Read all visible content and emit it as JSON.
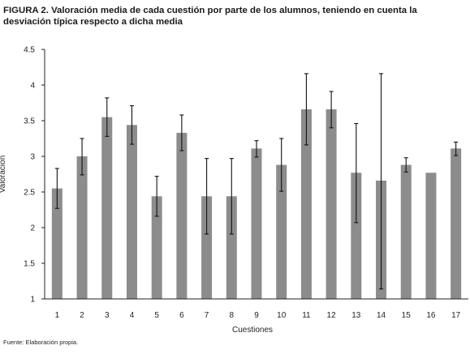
{
  "figure": {
    "label": "FIGURA 2.",
    "title": "Valoración media de cada cuestión por parte de los alumnos, teniendo en cuenta la desviación típica respecto a dicha media",
    "source": "Fuente: Elaboración propia."
  },
  "chart_data": {
    "type": "bar",
    "xlabel": "Cuestiones",
    "ylabel": "Valoracion",
    "ylim": [
      1,
      4.5
    ],
    "yticks": [
      "1",
      "1.5",
      "2",
      "2.5",
      "3",
      "3.5",
      "4",
      "4.5"
    ],
    "categories": [
      "1",
      "2",
      "3",
      "4",
      "5",
      "6",
      "7",
      "8",
      "9",
      "10",
      "11",
      "12",
      "13",
      "14",
      "15",
      "16",
      "17"
    ],
    "values": [
      2.55,
      3.0,
      3.55,
      3.44,
      2.44,
      3.33,
      2.44,
      2.44,
      3.11,
      2.88,
      3.66,
      3.66,
      2.77,
      2.66,
      2.88,
      2.77,
      3.11
    ],
    "error_low": [
      2.27,
      2.74,
      3.28,
      3.17,
      2.16,
      3.08,
      1.91,
      1.91,
      2.99,
      2.51,
      3.16,
      3.4,
      2.07,
      1.14,
      2.78,
      2.77,
      3.01
    ],
    "error_high": [
      2.83,
      3.25,
      3.82,
      3.71,
      2.72,
      3.58,
      2.97,
      2.97,
      3.22,
      3.25,
      4.16,
      3.91,
      3.46,
      4.16,
      2.98,
      2.77,
      3.2
    ],
    "bar_color": "#8c8c8c",
    "grid": false,
    "legend": "none"
  }
}
